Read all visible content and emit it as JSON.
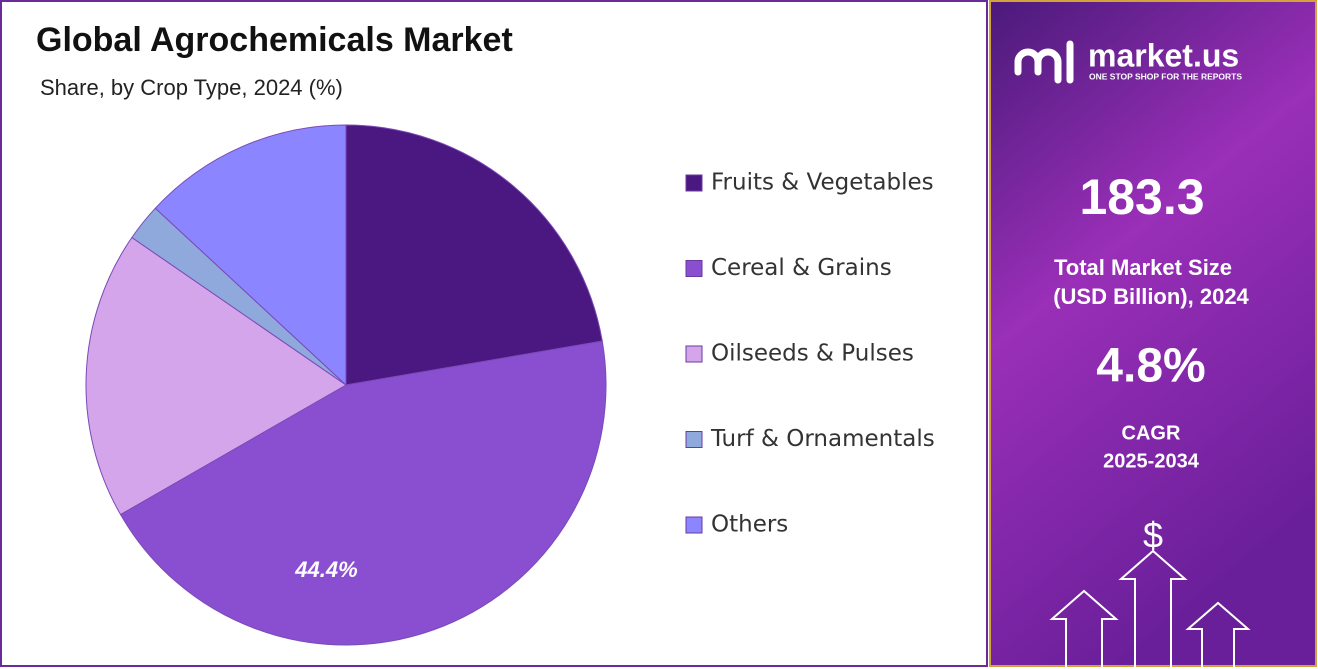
{
  "chart_data": {
    "type": "pie",
    "title": "Global Agrochemicals Market",
    "subtitle": "Share, by Crop Type, 2024 (%)",
    "categories": [
      "Fruits & Vegetables",
      "Cereal & Grains",
      "Oilseeds & Pulses",
      "Turf & Ornamentals",
      "Others"
    ],
    "values": [
      22.3,
      44.4,
      17.9,
      2.3,
      13.1
    ],
    "value_labels": [
      null,
      "44.4%",
      null,
      null,
      null
    ],
    "colors": [
      "#4b1780",
      "#8a4fd0",
      "#d4a5ea",
      "#8fa9dc",
      "#8b86ff"
    ],
    "legend": "right"
  },
  "sidebar": {
    "brand": "market.us",
    "tagline": "ONE STOP SHOP FOR THE REPORTS",
    "market_size": "183.3",
    "market_size_label_1": "Total Market Size",
    "market_size_label_2": "(USD Billion), 2024",
    "cagr": "4.8%",
    "cagr_label_1": "CAGR",
    "cagr_label_2": "2025-2034",
    "currency_icon": "$"
  }
}
